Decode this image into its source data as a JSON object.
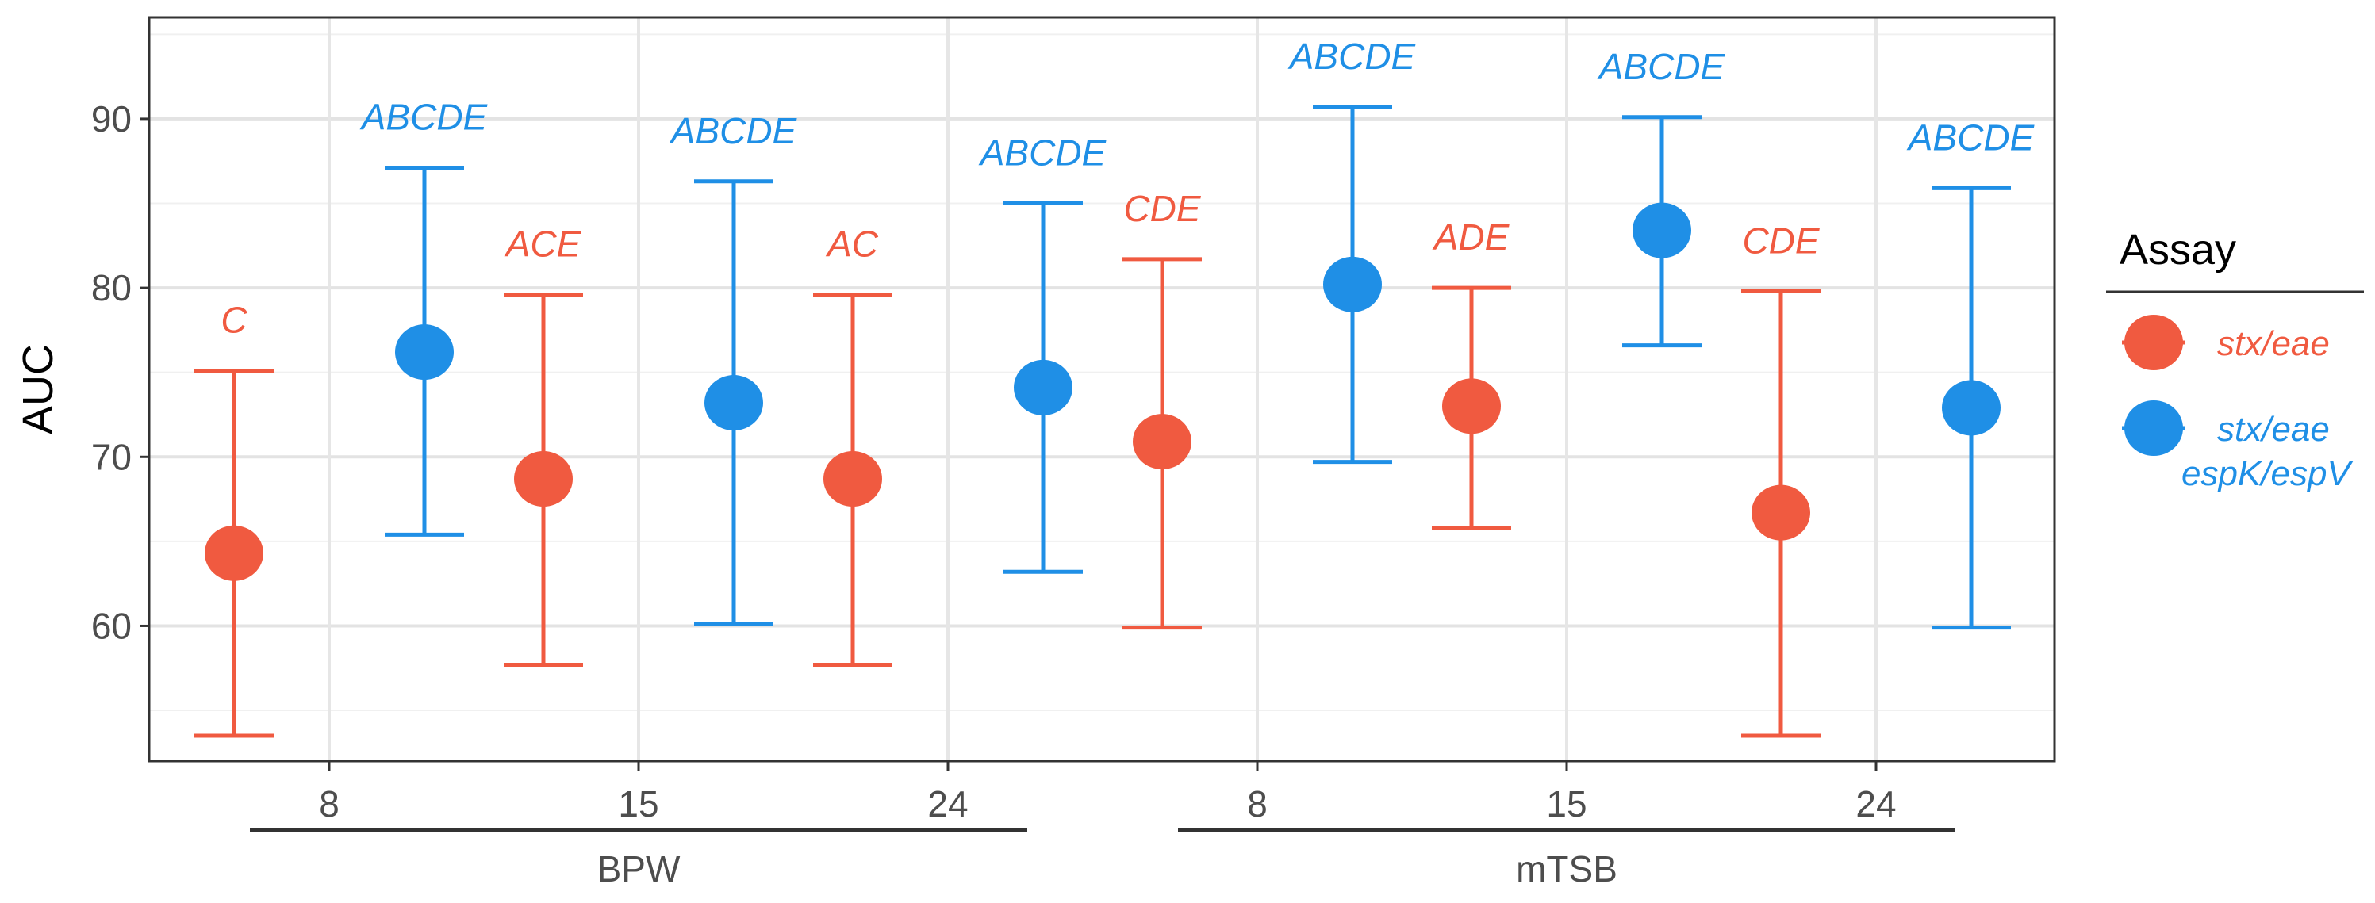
{
  "chart_data": {
    "type": "errorbar",
    "title": "",
    "ylabel": "AUC",
    "xlabel": "",
    "ylim": [
      52,
      96
    ],
    "yticks": [
      60,
      70,
      80,
      90
    ],
    "grid": true,
    "legend": {
      "title": "Assay",
      "position": "right",
      "entries": [
        {
          "lines": [
            "stx/eae"
          ],
          "color": "#f05a40"
        },
        {
          "lines": [
            "stx/eae",
            "espK/espV"
          ],
          "color": "#1f8fe6"
        }
      ]
    },
    "groups": [
      {
        "label": "BPW",
        "categories": [
          "8",
          "15",
          "24"
        ]
      },
      {
        "label": "mTSB",
        "categories": [
          "8",
          "15",
          "24"
        ]
      }
    ],
    "categories": [
      "8",
      "15",
      "24",
      "8",
      "15",
      "24"
    ],
    "series": [
      {
        "name": "stx/eae",
        "color": "#f05a40",
        "values": [
          64.3,
          68.7,
          68.7,
          70.9,
          73.0,
          66.7
        ],
        "lower": [
          53.5,
          57.7,
          57.7,
          59.9,
          65.8,
          53.5
        ],
        "upper": [
          75.1,
          79.6,
          79.6,
          81.7,
          80.0,
          79.8
        ],
        "letters": [
          "C",
          "ACE",
          "AC",
          "CDE",
          "ADE",
          "CDE"
        ]
      },
      {
        "name": "stx/eae espK/espV",
        "color": "#1f8fe6",
        "values": [
          76.2,
          73.2,
          74.1,
          80.2,
          83.4,
          72.9
        ],
        "lower": [
          65.4,
          60.1,
          63.2,
          69.7,
          76.6,
          59.9
        ],
        "upper": [
          87.1,
          86.3,
          85.0,
          90.7,
          90.1,
          85.9
        ],
        "letters": [
          "ABCDE",
          "ABCDE",
          "ABCDE",
          "ABCDE",
          "ABCDE",
          "ABCDE"
        ]
      }
    ]
  }
}
